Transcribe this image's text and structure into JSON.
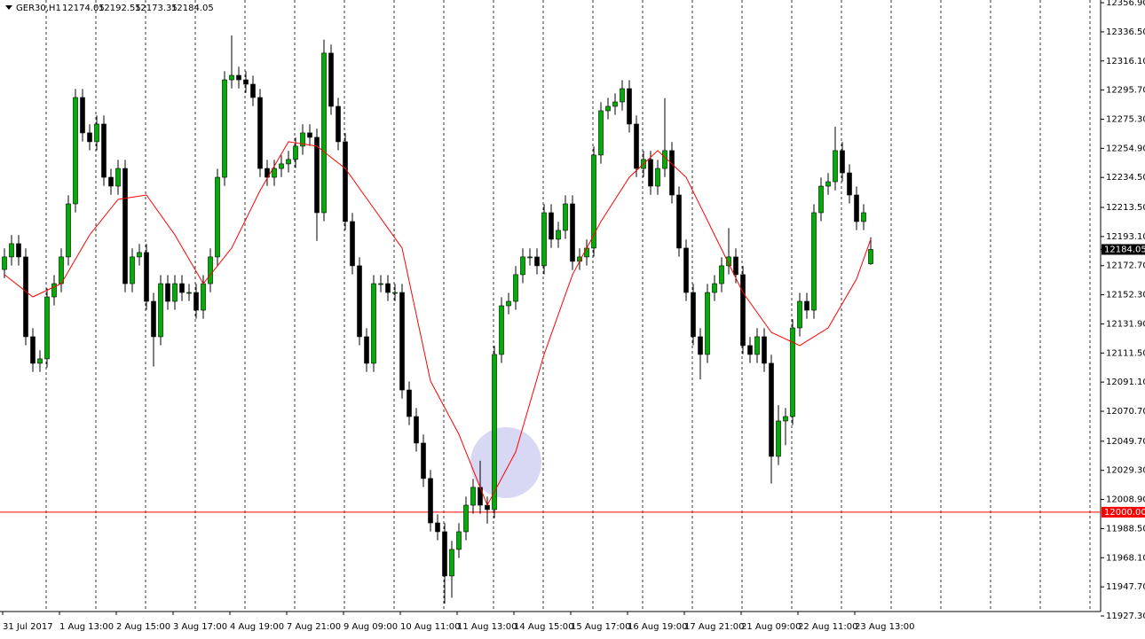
{
  "chart_data": {
    "type": "candlestick",
    "symbol": "GER30,H1",
    "xlim": [
      -0.625,
      154.375
    ],
    "ylim": [
      11930.4,
      12358.8
    ],
    "open": [
      12170.0,
      12178.8,
      12188.1,
      12178.8,
      12122.9,
      12104.3,
      12107.4,
      12150.8,
      12160.1,
      12178.8,
      12216.0,
      12290.5,
      12265.7,
      12259.5,
      12271.9,
      12234.6,
      12228.4,
      12240.8,
      12160.1,
      12178.8,
      12181.9,
      12147.7,
      12122.9,
      12160.1,
      12147.7,
      12160.1,
      12153.9,
      12153.9,
      12141.5,
      12160.1,
      12178.8,
      12234.6,
      12302.9,
      12306.0,
      12302.9,
      12299.8,
      12290.5,
      12240.8,
      12234.6,
      12240.8,
      12244.0,
      12247.1,
      12256.4,
      12265.7,
      12262.6,
      12209.8,
      12321.6,
      12284.3,
      12259.5,
      12203.6,
      12172.6,
      12122.9,
      12104.3,
      12160.1,
      12160.1,
      12153.9,
      12153.9,
      12085.6,
      12067.0,
      12048.4,
      12023.6,
      11992.5,
      11986.3,
      11955.3,
      11973.9,
      11986.3,
      12004.9,
      12017.4,
      12004.9,
      12001.8,
      12110.5,
      12144.6,
      12147.7,
      12166.4,
      12178.8,
      12178.8,
      12172.6,
      12209.8,
      12191.2,
      12197.4,
      12216.0,
      12175.7,
      12178.8,
      12185.0,
      12250.2,
      12281.2,
      12284.3,
      12287.4,
      12296.7,
      12271.9,
      12240.8,
      12247.1,
      12228.4,
      12240.8,
      12253.3,
      12222.2,
      12185.0,
      12153.9,
      12122.9,
      12110.5,
      12153.9,
      12160.1,
      12172.6,
      12178.8,
      12166.4,
      12116.7,
      12110.5,
      12122.9,
      12104.3,
      12039.1,
      12063.9,
      12067.0,
      12129.1,
      12147.7,
      12141.5,
      12209.8,
      12228.4,
      12231.5,
      12253.3,
      12237.7,
      12222.2,
      12203.6,
      12174.05
    ],
    "high": [
      12184.8,
      12194.1,
      12194.1,
      12184.8,
      12128.9,
      12113.4,
      12156.8,
      12166.1,
      12184.8,
      12222.0,
      12296.5,
      12296.5,
      12271.7,
      12277.9,
      12277.9,
      12240.6,
      12246.8,
      12246.8,
      12184.8,
      12187.9,
      12187.9,
      12153.7,
      12166.1,
      12166.1,
      12166.1,
      12166.1,
      12159.9,
      12159.9,
      12166.1,
      12184.8,
      12240.6,
      12308.9,
      12334.0,
      12312.0,
      12308.9,
      12305.8,
      12296.5,
      12246.8,
      12246.8,
      12250.0,
      12253.1,
      12262.4,
      12271.7,
      12271.7,
      12268.6,
      12331.0,
      12327.6,
      12290.3,
      12265.5,
      12209.6,
      12178.6,
      12128.9,
      12166.1,
      12166.1,
      12166.1,
      12159.9,
      12159.9,
      12091.6,
      12073.0,
      12054.4,
      12029.6,
      11998.5,
      11992.3,
      11979.9,
      11992.3,
      12010.9,
      12023.4,
      12036.0,
      12010.9,
      12116.5,
      12150.6,
      12153.7,
      12172.4,
      12184.8,
      12184.8,
      12184.8,
      12215.8,
      12215.8,
      12203.4,
      12222.0,
      12222.0,
      12184.8,
      12191.0,
      12256.2,
      12287.2,
      12290.3,
      12293.4,
      12302.7,
      12302.7,
      12277.9,
      12253.1,
      12253.1,
      12246.8,
      12290.0,
      12259.3,
      12228.2,
      12191.0,
      12159.9,
      12128.9,
      12159.9,
      12166.1,
      12178.6,
      12199.0,
      12184.8,
      12172.4,
      12122.7,
      12128.9,
      12128.9,
      12110.3,
      12075.0,
      12073.0,
      12135.1,
      12153.7,
      12153.7,
      12215.8,
      12234.4,
      12237.5,
      12270.0,
      12259.3,
      12243.7,
      12228.2,
      12215.8,
      12192.55
    ],
    "low": [
      12164.0,
      12172.8,
      12172.8,
      12116.9,
      12098.3,
      12098.3,
      12101.4,
      12144.8,
      12154.1,
      12172.8,
      12210.0,
      12259.7,
      12253.5,
      12253.5,
      12228.6,
      12222.4,
      12222.4,
      12154.1,
      12154.1,
      12172.8,
      12141.7,
      12102.0,
      12116.9,
      12141.7,
      12141.7,
      12147.9,
      12147.9,
      12135.5,
      12135.5,
      12154.1,
      12172.8,
      12228.6,
      12296.9,
      12296.9,
      12293.8,
      12284.5,
      12234.8,
      12228.6,
      12228.6,
      12234.8,
      12238.0,
      12241.1,
      12250.4,
      12256.6,
      12190.0,
      12203.8,
      12278.3,
      12253.5,
      12197.6,
      12166.6,
      12116.9,
      12098.3,
      12098.3,
      12154.1,
      12147.9,
      12147.9,
      12079.6,
      12061.0,
      12042.4,
      12017.6,
      11986.5,
      11980.3,
      11936.0,
      11940.0,
      11967.9,
      11980.3,
      11998.9,
      11998.9,
      11992.0,
      11995.8,
      12104.5,
      12138.6,
      12141.7,
      12160.4,
      12172.8,
      12166.6,
      12166.6,
      12185.2,
      12185.2,
      12191.4,
      12169.7,
      12169.7,
      12172.8,
      12179.0,
      12244.2,
      12275.2,
      12278.3,
      12281.4,
      12265.9,
      12234.8,
      12234.8,
      12222.4,
      12222.4,
      12234.8,
      12216.2,
      12179.0,
      12147.9,
      12116.9,
      12093.0,
      12104.5,
      12147.9,
      12154.1,
      12166.6,
      12160.4,
      12110.7,
      12104.5,
      12104.5,
      12098.3,
      12020.0,
      12033.1,
      12047.0,
      12061.0,
      12123.1,
      12135.5,
      12135.5,
      12203.8,
      12222.4,
      12225.5,
      12231.7,
      12216.2,
      12197.6,
      12197.6,
      12173.35
    ],
    "close": [
      12178.8,
      12188.1,
      12178.8,
      12122.9,
      12104.3,
      12107.4,
      12150.8,
      12160.1,
      12178.8,
      12216.0,
      12290.5,
      12265.7,
      12259.5,
      12271.9,
      12234.6,
      12228.4,
      12240.8,
      12160.1,
      12178.8,
      12181.9,
      12147.7,
      12122.9,
      12160.1,
      12147.7,
      12160.1,
      12153.9,
      12153.9,
      12141.5,
      12160.1,
      12178.8,
      12234.6,
      12302.9,
      12306.0,
      12302.9,
      12299.8,
      12290.5,
      12240.8,
      12234.6,
      12240.8,
      12244.0,
      12247.1,
      12256.4,
      12265.7,
      12262.6,
      12209.8,
      12321.6,
      12284.3,
      12259.5,
      12203.6,
      12172.6,
      12122.9,
      12104.3,
      12160.1,
      12160.1,
      12153.9,
      12153.9,
      12085.6,
      12067.0,
      12048.4,
      12023.6,
      11992.5,
      11986.3,
      11955.3,
      11973.9,
      11986.3,
      12004.9,
      12017.4,
      12004.9,
      12001.8,
      12110.5,
      12144.6,
      12147.7,
      12166.4,
      12178.8,
      12178.8,
      12172.6,
      12209.8,
      12191.2,
      12197.4,
      12216.0,
      12175.7,
      12178.8,
      12185.0,
      12250.2,
      12281.2,
      12284.3,
      12287.4,
      12296.7,
      12271.9,
      12240.8,
      12247.1,
      12228.4,
      12240.8,
      12253.3,
      12222.2,
      12185.0,
      12153.9,
      12122.9,
      12110.5,
      12153.9,
      12160.1,
      12172.6,
      12178.8,
      12166.4,
      12116.7,
      12110.5,
      12122.9,
      12104.3,
      12039.1,
      12063.9,
      12067.0,
      12129.1,
      12147.7,
      12141.5,
      12209.8,
      12228.4,
      12231.5,
      12253.3,
      12237.7,
      12222.2,
      12203.6,
      12209.8,
      12184.05
    ],
    "up_color": "#00b000",
    "down_color": "#000000",
    "ma": {
      "color": "#ff0000",
      "x": [
        0,
        4,
        8,
        12,
        16,
        20,
        24,
        28,
        32,
        36,
        40,
        44,
        48,
        52,
        56,
        60,
        64,
        68,
        72,
        76,
        80,
        84,
        88,
        92,
        96,
        100,
        104,
        108,
        112,
        116,
        120,
        122
      ],
      "values": [
        12166.4,
        12150.8,
        12160.1,
        12194.3,
        12219.1,
        12222.2,
        12194.3,
        12160.1,
        12185.0,
        12225.3,
        12259.5,
        12256.4,
        12240.8,
        12212.9,
        12185.0,
        12091.9,
        12054.6,
        12004.9,
        12042.2,
        12110.5,
        12166.4,
        12203.6,
        12234.6,
        12253.3,
        12234.6,
        12194.3,
        12153.9,
        12126.0,
        12116.7,
        12129.1,
        12163.3,
        12191.2
      ]
    },
    "level": {
      "value": 12000,
      "label": "12000.00"
    },
    "level_color": "#ff0000",
    "yticks": [
      {
        "value": 12356.9,
        "label": "12356.90"
      },
      {
        "value": 12336.5,
        "label": "12336.50"
      },
      {
        "value": 12316.1,
        "label": "12316.10"
      },
      {
        "value": 12295.7,
        "label": "12295.70"
      },
      {
        "value": 12275.3,
        "label": "12275.30"
      },
      {
        "value": 12254.9,
        "label": "12254.90"
      },
      {
        "value": 12234.5,
        "label": "12234.50"
      },
      {
        "value": 12213.5,
        "label": "12213.50"
      },
      {
        "value": 12193.1,
        "label": "12193.10"
      },
      {
        "value": 12172.7,
        "label": "12172.70"
      },
      {
        "value": 12152.3,
        "label": "12152.30"
      },
      {
        "value": 12131.9,
        "label": "12131.90"
      },
      {
        "value": 12111.5,
        "label": "12111.50"
      },
      {
        "value": 12091.1,
        "label": "12091.10"
      },
      {
        "value": 12070.7,
        "label": "12070.70"
      },
      {
        "value": 12049.7,
        "label": "12049.70"
      },
      {
        "value": 12029.3,
        "label": "12029.30"
      },
      {
        "value": 12008.9,
        "label": "12008.90"
      },
      {
        "value": 11988.5,
        "label": "11988.50"
      },
      {
        "value": 11968.1,
        "label": "11968.10"
      },
      {
        "value": 11947.7,
        "label": "11947.70"
      },
      {
        "value": 11927.3,
        "label": "11927.30"
      }
    ],
    "xticks": [
      {
        "value": 0,
        "label": "31 Jul 2017"
      },
      {
        "value": 8,
        "label": "1 Aug 13:00"
      },
      {
        "value": 16,
        "label": "2 Aug 15:00"
      },
      {
        "value": 24,
        "label": "3 Aug 17:00"
      },
      {
        "value": 32,
        "label": "4 Aug 19:00"
      },
      {
        "value": 40,
        "label": "7 Aug 21:00"
      },
      {
        "value": 48,
        "label": "9 Aug 09:00"
      },
      {
        "value": 56,
        "label": "10 Aug 11:00"
      },
      {
        "value": 64,
        "label": "11 Aug 13:00"
      },
      {
        "value": 72,
        "label": "14 Aug 15:00"
      },
      {
        "value": 80,
        "label": "15 Aug 17:00"
      },
      {
        "value": 88,
        "label": "16 Aug 19:00"
      },
      {
        "value": 96,
        "label": "17 Aug 21:00"
      },
      {
        "value": 104,
        "label": "21 Aug 09:00"
      },
      {
        "value": 112,
        "label": "22 Aug 11:00"
      },
      {
        "value": 120,
        "label": "23 Aug 13:00"
      }
    ]
  }
}
